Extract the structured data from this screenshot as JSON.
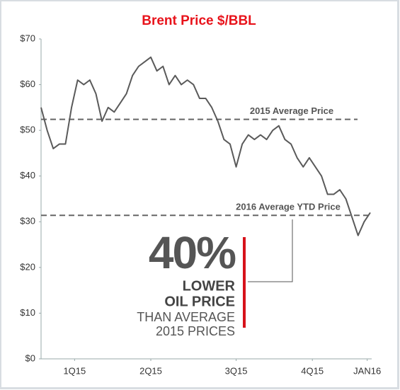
{
  "chart_data": {
    "type": "line",
    "title": "Brent Price $/BBL",
    "title_color": "#e8131b",
    "x": [
      0,
      1,
      2,
      3,
      4,
      5,
      6,
      7,
      8,
      9,
      10,
      11,
      12,
      13,
      14,
      15,
      16,
      17,
      18,
      19,
      20,
      21,
      22,
      23,
      24,
      25,
      26,
      27,
      28,
      29,
      30,
      31,
      32,
      33,
      34,
      35,
      36,
      37,
      38,
      39,
      40,
      41,
      42,
      43,
      44,
      45,
      46,
      47,
      48,
      49,
      50,
      51,
      52,
      53,
      54
    ],
    "series": [
      {
        "color": "#5a5a5a",
        "values": [
          55,
          50,
          46,
          47,
          47,
          55,
          61,
          60,
          61,
          58,
          52,
          55,
          54,
          56,
          58,
          62,
          64,
          65,
          66,
          63,
          64,
          60,
          62,
          60,
          61,
          60,
          57,
          57,
          55,
          52,
          48,
          47,
          42,
          47,
          49,
          48,
          49,
          48,
          50,
          51,
          48,
          47,
          44,
          42,
          44,
          42,
          40,
          36,
          36,
          37,
          35,
          31,
          27,
          30,
          32
        ]
      }
    ],
    "xlim": [
      0,
      54
    ],
    "xticks": [
      {
        "value": 5.5,
        "label": "1Q15"
      },
      {
        "value": 18,
        "label": "2Q15"
      },
      {
        "value": 32,
        "label": "3Q15"
      },
      {
        "value": 44.5,
        "label": "4Q15"
      },
      {
        "value": 53.5,
        "label": "JAN16"
      }
    ],
    "ylim": [
      0,
      70
    ],
    "yticks": [
      {
        "value": 0,
        "label": "$0"
      },
      {
        "value": 10,
        "label": "$10"
      },
      {
        "value": 20,
        "label": "$20"
      },
      {
        "value": 30,
        "label": "$30"
      },
      {
        "value": 40,
        "label": "$40"
      },
      {
        "value": 50,
        "label": "$50"
      },
      {
        "value": 60,
        "label": "$60"
      },
      {
        "value": 70,
        "label": "$70"
      }
    ],
    "reference_lines": [
      {
        "label": "2015 Average Price",
        "value": 52.4
      },
      {
        "label": "2016 Average YTD Price",
        "value": 31.4
      }
    ],
    "annotation": [
      "40%",
      "LOWER",
      "OIL PRICE",
      "THAN AVERAGE",
      "2015 PRICES"
    ],
    "annotation_color": "#d7121b"
  }
}
